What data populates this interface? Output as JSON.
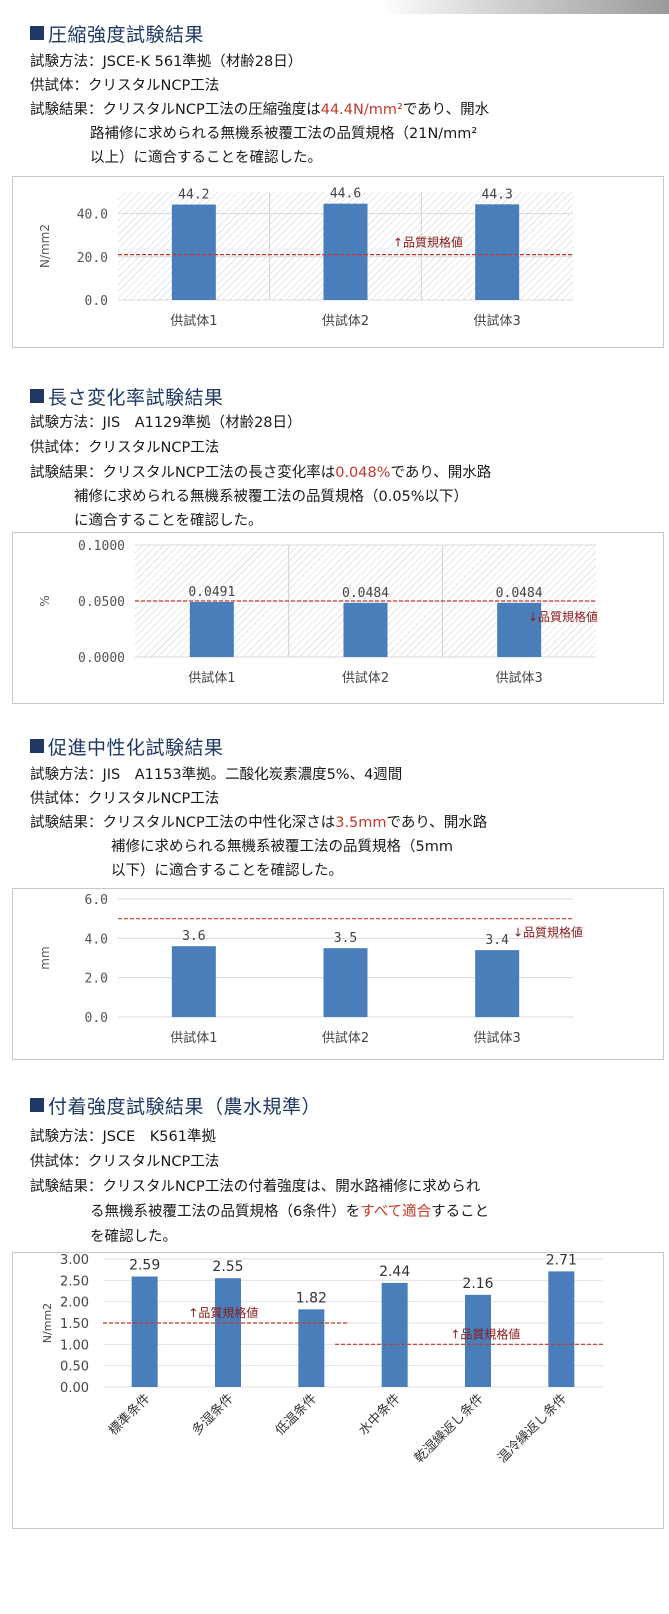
{
  "sections": [
    {
      "heading": "圧縮強度試験結果",
      "method": "試験方法：JSCE-K 561準拠（材齢28日）",
      "specimen": "供試体：クリスタルNCP工法",
      "result_pre": "試験結果：クリスタルNCP工法の圧縮強度は",
      "result_hl": "44.4N/mm²",
      "result_post": "であり、開水",
      "result_l2": "路補修に求められる無機系被覆工法の品質規格（21N/mm²",
      "result_l3": "以上）に適合することを確認した。"
    },
    {
      "heading": "長さ変化率試験結果",
      "method": "試験方法：JIS　A1129準拠（材齢28日）",
      "specimen": "供試体：クリスタルNCP工法",
      "result_pre": "試験結果：クリスタルNCP工法の長さ変化率は",
      "result_hl": "0.048%",
      "result_post": "であり、開水路",
      "result_l2": "補修に求められる無機系被覆工法の品質規格（0.05%以下）",
      "result_l3": "に適合することを確認した。"
    },
    {
      "heading": "促進中性化試験結果",
      "method": "試験方法：JIS　A1153準拠。二酸化炭素濃度5%、4週間",
      "specimen": "供試体：クリスタルNCP工法",
      "result_pre": "試験結果：クリスタルNCP工法の中性化深さは",
      "result_hl": "3.5mm",
      "result_post": "であり、開水路",
      "result_l2": "補修に求められる無機系被覆工法の品質規格（5mm",
      "result_l3": "以下）に適合することを確認した。"
    },
    {
      "heading": "付着強度試験結果（農水規準）",
      "method": "試験方法：JSCE　K561準拠",
      "specimen": "供試体：クリスタルNCP工法",
      "result_pre": "試験結果：クリスタルNCP工法の付着強度は、開水路補修に求められ",
      "result_l2_pre": "る無機系被覆工法の品質規格（6条件）を",
      "result_hl": "すべて適合",
      "result_l2_post": "すること",
      "result_l3": "を確認した。"
    }
  ],
  "colors": {
    "bar": "#4a7ebb",
    "spec_line": "#c0392b",
    "heading": "#1f3864",
    "highlight": "#c0392b"
  },
  "chart_data": [
    {
      "type": "bar",
      "categories": [
        "供試体1",
        "供試体2",
        "供試体3"
      ],
      "values": [
        44.2,
        44.6,
        44.3
      ],
      "value_labels": [
        "44.2",
        "44.6",
        "44.3"
      ],
      "ylabel": "N/mm2",
      "yticks": [
        "0.0",
        "20.0",
        "40.0"
      ],
      "ylim": [
        0,
        50
      ],
      "threshold": 21,
      "threshold_label": "↑品質規格値"
    },
    {
      "type": "bar",
      "categories": [
        "供試体1",
        "供試体2",
        "供試体3"
      ],
      "values": [
        0.0491,
        0.0484,
        0.0484
      ],
      "value_labels": [
        "0.0491",
        "0.0484",
        "0.0484"
      ],
      "ylabel": "%",
      "yticks": [
        "0.0000",
        "0.0500",
        "0.1000"
      ],
      "ylim": [
        0,
        0.1
      ],
      "threshold": 0.05,
      "threshold_label": "↓品質規格値"
    },
    {
      "type": "bar",
      "categories": [
        "供試体1",
        "供試体2",
        "供試体3"
      ],
      "values": [
        3.6,
        3.5,
        3.4
      ],
      "value_labels": [
        "3.6",
        "3.5",
        "3.4"
      ],
      "ylabel": "mm",
      "yticks": [
        "0.0",
        "2.0",
        "4.0",
        "6.0"
      ],
      "ylim": [
        0,
        6
      ],
      "threshold": 5,
      "threshold_label": "↓品質規格値"
    },
    {
      "type": "bar",
      "categories": [
        "標準条件",
        "多湿条件",
        "低温条件",
        "水中条件",
        "乾湿繰返し条件",
        "温冷繰返し条件"
      ],
      "values": [
        2.59,
        2.55,
        1.82,
        2.44,
        2.16,
        2.71
      ],
      "value_labels": [
        "2.59",
        "2.55",
        "1.82",
        "2.44",
        "2.16",
        "2.71"
      ],
      "ylabel": "N/mm2",
      "yticks": [
        "0.00",
        "0.50",
        "1.00",
        "1.50",
        "2.00",
        "2.50",
        "3.00"
      ],
      "ylim": [
        0,
        3
      ],
      "thresholds": [
        {
          "value": 1.5,
          "label": "↑品質規格値",
          "from": 0,
          "to": 2
        },
        {
          "value": 1.0,
          "label": "↑品質規格値",
          "from": 3,
          "to": 5
        }
      ]
    }
  ]
}
